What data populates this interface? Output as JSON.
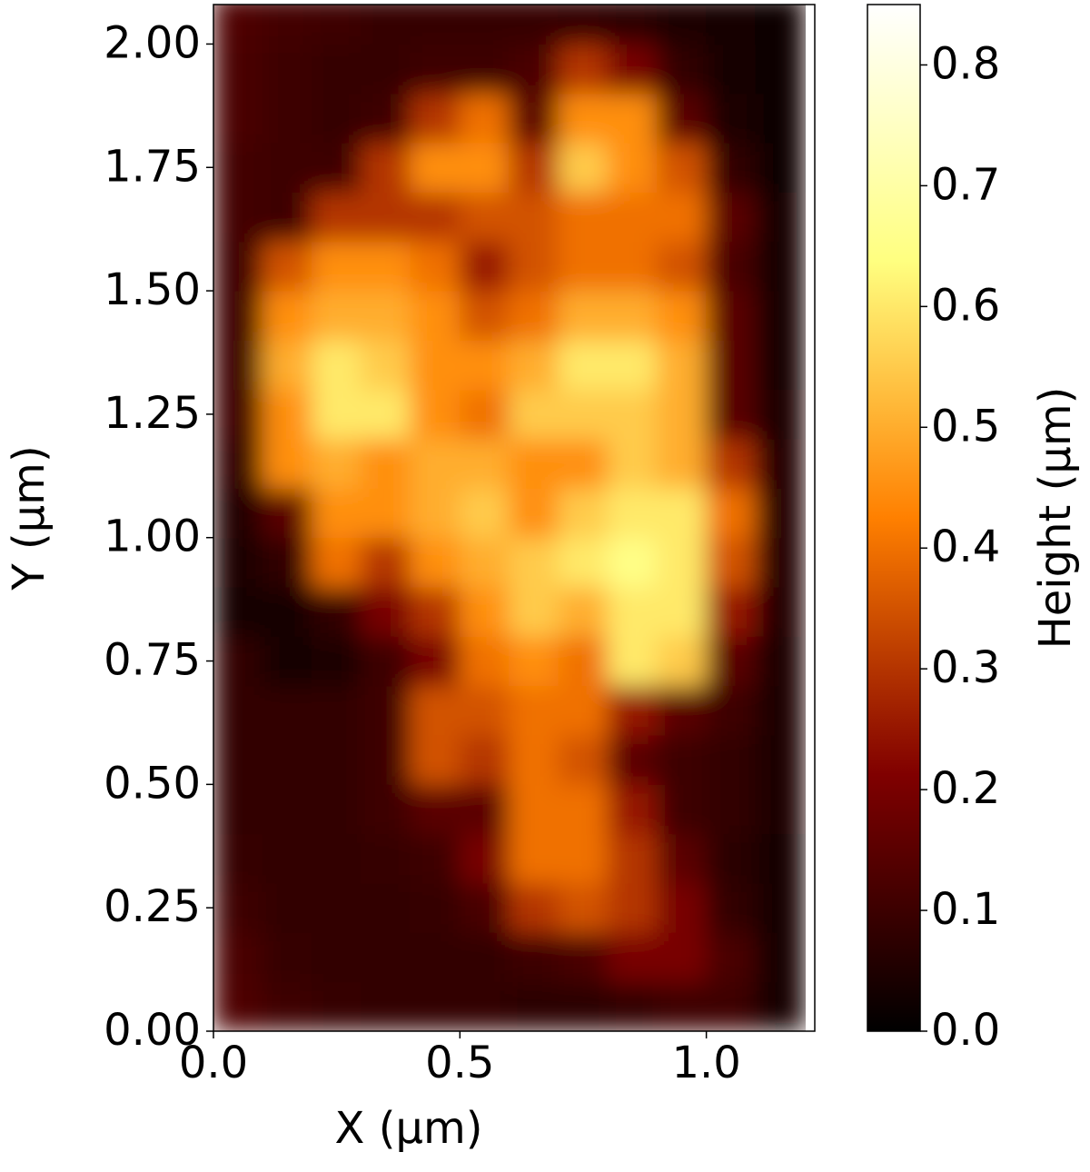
{
  "chart_data": {
    "type": "heatmap",
    "xlabel": "X (µm)",
    "ylabel": "Y (µm)",
    "colorbar_label": "Height (μm)",
    "colormap": "afmhot",
    "x": [
      0.05,
      0.15,
      0.25,
      0.35,
      0.45,
      0.55,
      0.65,
      0.75,
      0.85,
      0.95,
      1.05,
      1.15
    ],
    "y": [
      0.05,
      0.15,
      0.25,
      0.35,
      0.45,
      0.55,
      0.65,
      0.75,
      0.85,
      0.95,
      1.05,
      1.15,
      1.25,
      1.35,
      1.45,
      1.55,
      1.65,
      1.75,
      1.85,
      1.95,
      2.05
    ],
    "z": [
      [
        0.13,
        0.1,
        0.09,
        0.08,
        0.08,
        0.08,
        0.07,
        0.07,
        0.08,
        0.1,
        0.1,
        0.04
      ],
      [
        0.12,
        0.09,
        0.08,
        0.08,
        0.08,
        0.08,
        0.1,
        0.12,
        0.2,
        0.2,
        0.12,
        0.04
      ],
      [
        0.1,
        0.08,
        0.08,
        0.08,
        0.09,
        0.12,
        0.3,
        0.35,
        0.3,
        0.2,
        0.08,
        0.04
      ],
      [
        0.09,
        0.08,
        0.08,
        0.09,
        0.1,
        0.2,
        0.4,
        0.4,
        0.3,
        0.15,
        0.07,
        0.04
      ],
      [
        0.08,
        0.08,
        0.08,
        0.1,
        0.15,
        0.15,
        0.4,
        0.4,
        0.25,
        0.1,
        0.08,
        0.05
      ],
      [
        0.08,
        0.08,
        0.08,
        0.1,
        0.35,
        0.3,
        0.4,
        0.35,
        0.15,
        0.1,
        0.08,
        0.05
      ],
      [
        0.08,
        0.08,
        0.08,
        0.1,
        0.35,
        0.35,
        0.4,
        0.4,
        0.25,
        0.15,
        0.1,
        0.05
      ],
      [
        0.08,
        0.04,
        0.05,
        0.1,
        0.2,
        0.4,
        0.45,
        0.4,
        0.6,
        0.55,
        0.15,
        0.05
      ],
      [
        0.03,
        0.04,
        0.08,
        0.2,
        0.3,
        0.45,
        0.55,
        0.5,
        0.6,
        0.6,
        0.25,
        0.06
      ],
      [
        0.05,
        0.08,
        0.4,
        0.3,
        0.45,
        0.5,
        0.55,
        0.6,
        0.65,
        0.6,
        0.35,
        0.06
      ],
      [
        0.06,
        0.15,
        0.45,
        0.45,
        0.5,
        0.55,
        0.45,
        0.55,
        0.6,
        0.6,
        0.4,
        0.06
      ],
      [
        0.08,
        0.45,
        0.5,
        0.45,
        0.5,
        0.5,
        0.45,
        0.45,
        0.55,
        0.5,
        0.3,
        0.06
      ],
      [
        0.1,
        0.45,
        0.6,
        0.6,
        0.45,
        0.4,
        0.55,
        0.55,
        0.55,
        0.5,
        0.15,
        0.05
      ],
      [
        0.1,
        0.5,
        0.6,
        0.55,
        0.45,
        0.45,
        0.5,
        0.6,
        0.6,
        0.5,
        0.15,
        0.04
      ],
      [
        0.1,
        0.45,
        0.5,
        0.5,
        0.45,
        0.35,
        0.4,
        0.5,
        0.5,
        0.45,
        0.15,
        0.04
      ],
      [
        0.1,
        0.35,
        0.45,
        0.45,
        0.4,
        0.25,
        0.35,
        0.4,
        0.4,
        0.35,
        0.12,
        0.03
      ],
      [
        0.11,
        0.1,
        0.3,
        0.3,
        0.3,
        0.35,
        0.35,
        0.4,
        0.4,
        0.4,
        0.15,
        0.03
      ],
      [
        0.11,
        0.1,
        0.1,
        0.3,
        0.45,
        0.45,
        0.3,
        0.55,
        0.45,
        0.35,
        0.08,
        0.02
      ],
      [
        0.12,
        0.1,
        0.09,
        0.1,
        0.3,
        0.4,
        0.15,
        0.45,
        0.45,
        0.15,
        0.05,
        0.02
      ],
      [
        0.12,
        0.1,
        0.09,
        0.09,
        0.1,
        0.1,
        0.12,
        0.3,
        0.2,
        0.08,
        0.04,
        0.02
      ],
      [
        0.13,
        0.11,
        0.1,
        0.09,
        0.09,
        0.09,
        0.09,
        0.08,
        0.07,
        0.05,
        0.03,
        0.02
      ]
    ],
    "xlim": [
      0,
      1.22
    ],
    "ylim": [
      0,
      2.08
    ],
    "clim": [
      0,
      0.85
    ],
    "xticks": [
      {
        "value": 0,
        "label": "0.0"
      },
      {
        "value": 0.5,
        "label": "0.5"
      },
      {
        "value": 1,
        "label": "1.0"
      }
    ],
    "yticks": [
      {
        "value": 0,
        "label": "0.00"
      },
      {
        "value": 0.25,
        "label": "0.25"
      },
      {
        "value": 0.5,
        "label": "0.50"
      },
      {
        "value": 0.75,
        "label": "0.75"
      },
      {
        "value": 1,
        "label": "1.00"
      },
      {
        "value": 1.25,
        "label": "1.25"
      },
      {
        "value": 1.5,
        "label": "1.50"
      },
      {
        "value": 1.75,
        "label": "1.75"
      },
      {
        "value": 2,
        "label": "2.00"
      }
    ],
    "cticks": [
      {
        "value": 0,
        "label": "0.0"
      },
      0.1,
      0.2,
      0.3,
      0.4,
      0.5,
      0.6,
      0.7,
      0.8
    ]
  }
}
